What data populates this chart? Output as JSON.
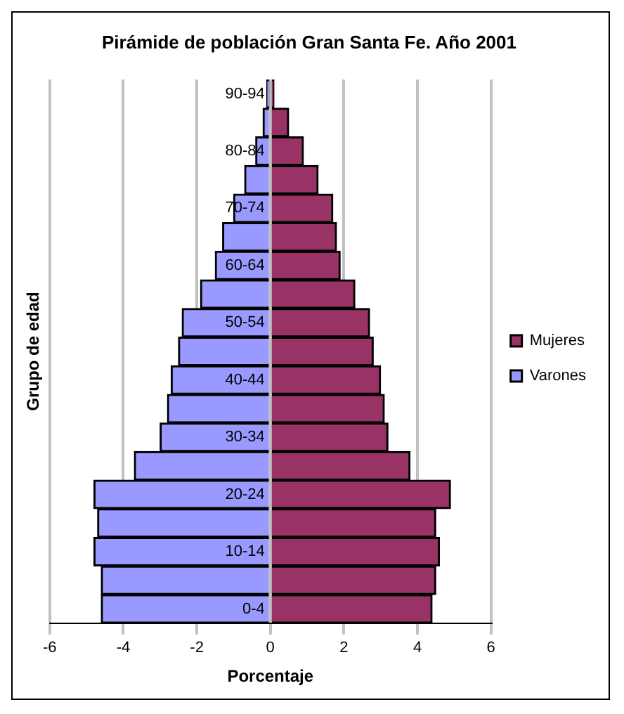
{
  "chart_data": {
    "type": "bar",
    "title": "Pirámide de población Gran Santa Fe. Año 2001",
    "xlabel": "Porcentaje",
    "ylabel": "Grupo de edad",
    "orientation": "horizontal",
    "stacked": true,
    "categories": [
      "90-94",
      null,
      "80-84",
      null,
      "70-74",
      null,
      "60-64",
      null,
      "50-54",
      null,
      "40-44",
      null,
      "30-34",
      null,
      "20-24",
      null,
      "10-14",
      null,
      "0-4"
    ],
    "series": [
      {
        "name": "Mujeres",
        "color": "#993366",
        "values": [
          0.1,
          0.5,
          0.9,
          1.3,
          1.7,
          1.8,
          1.9,
          2.3,
          2.7,
          2.8,
          3.0,
          3.1,
          3.2,
          3.8,
          4.9,
          4.5,
          4.6,
          4.5,
          4.4
        ]
      },
      {
        "name": "Varones",
        "color": "#9999ff",
        "values": [
          -0.1,
          -0.2,
          -0.4,
          -0.7,
          -1.0,
          -1.3,
          -1.5,
          -1.9,
          -2.4,
          -2.5,
          -2.7,
          -2.8,
          -3.0,
          -3.7,
          -4.8,
          -4.7,
          -4.8,
          -4.6,
          -4.6
        ]
      }
    ],
    "xlim": [
      -6,
      6
    ],
    "xticks": [
      -6,
      -4,
      -2,
      0,
      2,
      4,
      6
    ],
    "grid": "x",
    "legend": "right"
  }
}
